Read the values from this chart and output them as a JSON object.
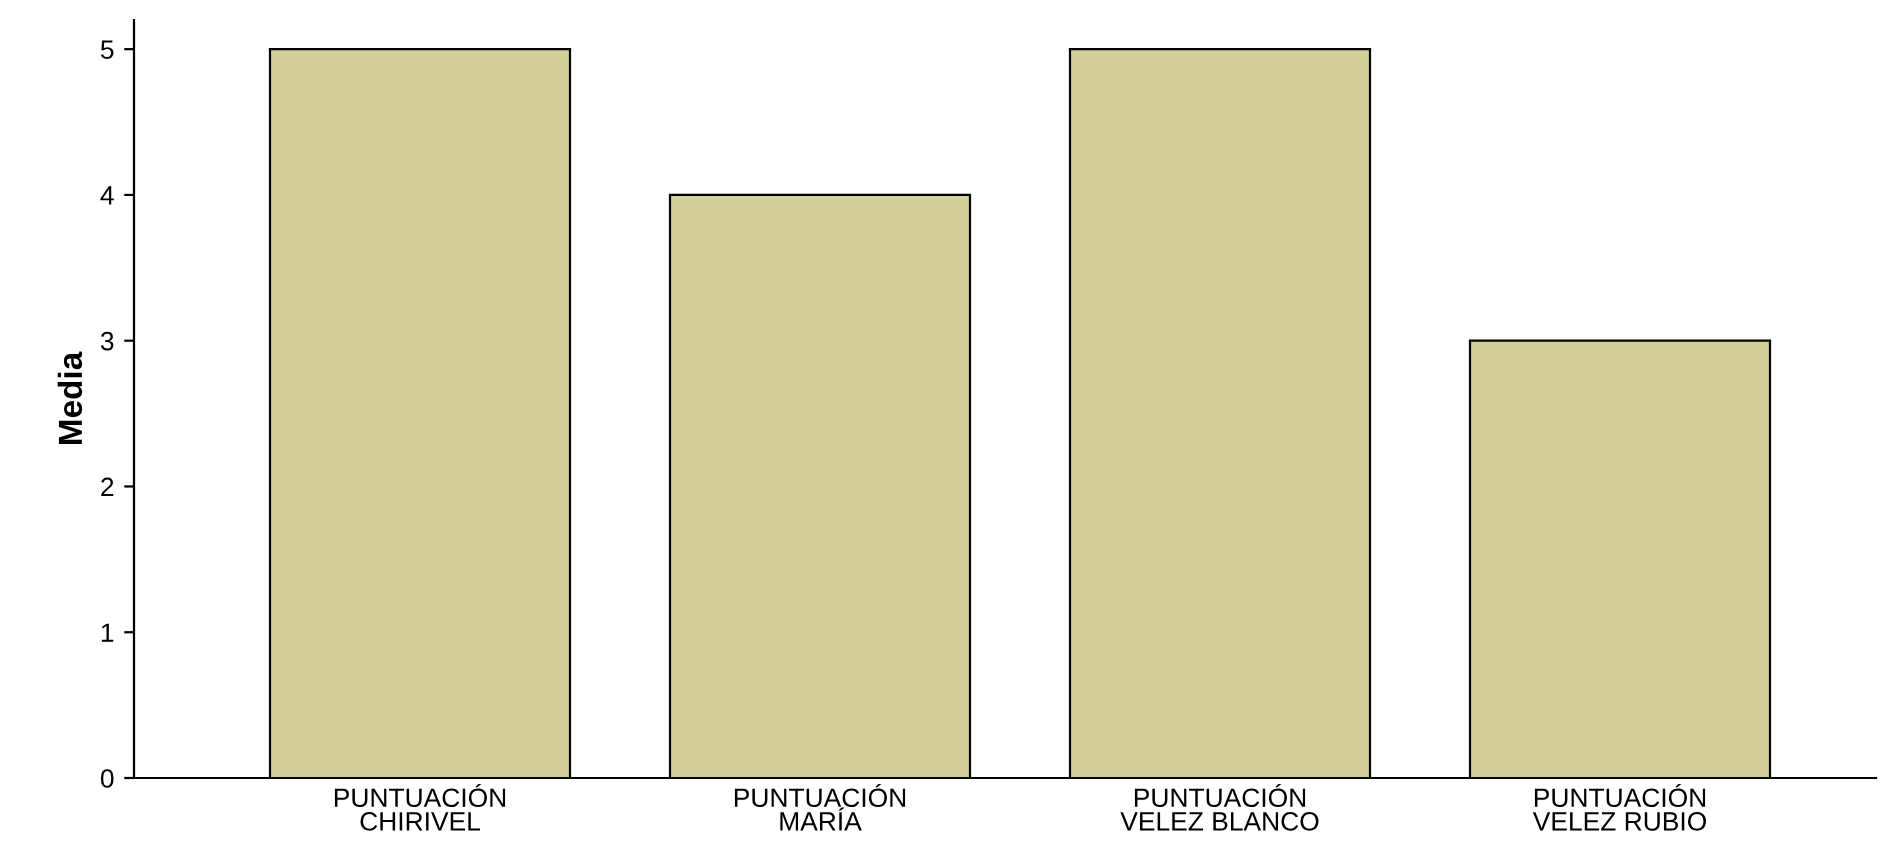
{
  "chart_data": {
    "type": "bar",
    "ylabel": "Media",
    "categories": [
      "PUNTUACIÓN\nCHIRIVEL",
      "PUNTUACIÓN\nMARÍA",
      "PUNTUACIÓN\nVELEZ BLANCO",
      "PUNTUACIÓN\nVELEZ RUBIO"
    ],
    "values": [
      5,
      4,
      5,
      3
    ],
    "color": "#d3cf99",
    "ylim": [
      0,
      5.2
    ],
    "yticks": [
      0,
      1,
      2,
      3,
      4,
      5
    ],
    "grid": false,
    "legend": false
  }
}
